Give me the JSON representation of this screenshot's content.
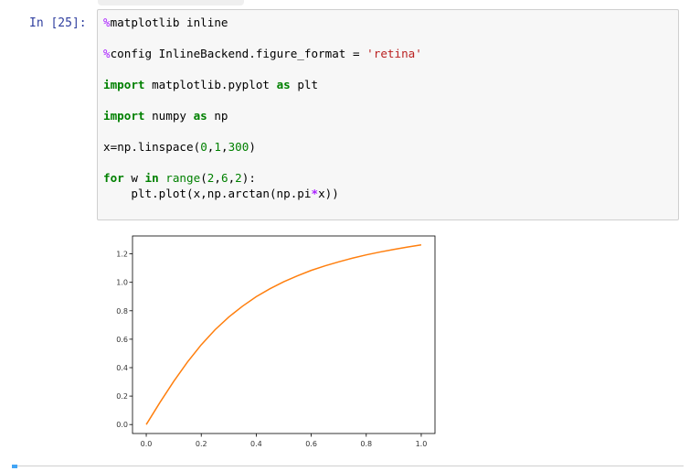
{
  "cell": {
    "prompt": "In [25]:",
    "code_lines": [
      {
        "parts": [
          {
            "t": "%",
            "c": "mg"
          },
          {
            "t": "matplotlib inline",
            "c": ""
          }
        ]
      },
      {
        "parts": []
      },
      {
        "parts": [
          {
            "t": "%",
            "c": "mg"
          },
          {
            "t": "config InlineBackend.figure_format ",
            "c": ""
          },
          {
            "t": "=",
            "c": ""
          },
          {
            "t": " ",
            "c": ""
          },
          {
            "t": "'retina'",
            "c": "str"
          }
        ]
      },
      {
        "parts": []
      },
      {
        "parts": [
          {
            "t": "import",
            "c": "kw"
          },
          {
            "t": " matplotlib.pyplot ",
            "c": ""
          },
          {
            "t": "as",
            "c": "kw"
          },
          {
            "t": " plt",
            "c": ""
          }
        ]
      },
      {
        "parts": []
      },
      {
        "parts": [
          {
            "t": "import",
            "c": "kw"
          },
          {
            "t": " numpy ",
            "c": ""
          },
          {
            "t": "as",
            "c": "kw"
          },
          {
            "t": " np",
            "c": ""
          }
        ]
      },
      {
        "parts": []
      },
      {
        "parts": [
          {
            "t": "x",
            "c": ""
          },
          {
            "t": "=",
            "c": ""
          },
          {
            "t": "np.linspace(",
            "c": ""
          },
          {
            "t": "0",
            "c": "num"
          },
          {
            "t": ",",
            "c": ""
          },
          {
            "t": "1",
            "c": "num"
          },
          {
            "t": ",",
            "c": ""
          },
          {
            "t": "300",
            "c": "num"
          },
          {
            "t": ")",
            "c": ""
          }
        ]
      },
      {
        "parts": []
      },
      {
        "parts": [
          {
            "t": "for",
            "c": "kw"
          },
          {
            "t": " w ",
            "c": ""
          },
          {
            "t": "in",
            "c": "kw"
          },
          {
            "t": " ",
            "c": ""
          },
          {
            "t": "range",
            "c": "bi"
          },
          {
            "t": "(",
            "c": ""
          },
          {
            "t": "2",
            "c": "num"
          },
          {
            "t": ",",
            "c": ""
          },
          {
            "t": "6",
            "c": "num"
          },
          {
            "t": ",",
            "c": ""
          },
          {
            "t": "2",
            "c": "num"
          },
          {
            "t": "):",
            "c": ""
          }
        ]
      },
      {
        "parts": [
          {
            "t": "    plt.plot(x,np.arctan(np.pi",
            "c": ""
          },
          {
            "t": "*",
            "c": "op"
          },
          {
            "t": "x))",
            "c": ""
          }
        ]
      }
    ]
  },
  "chart_data": {
    "type": "line",
    "x_function": "arctan(pi*x)",
    "x": [
      0,
      0.05,
      0.1,
      0.15,
      0.2,
      0.25,
      0.3,
      0.35,
      0.4,
      0.45,
      0.5,
      0.55,
      0.6,
      0.65,
      0.7,
      0.75,
      0.8,
      0.85,
      0.9,
      0.95,
      1.0
    ],
    "series": [
      {
        "color": "#ff7f0e",
        "values": [
          0.0,
          0.156,
          0.304,
          0.44,
          0.561,
          0.666,
          0.756,
          0.832,
          0.899,
          0.955,
          1.004,
          1.046,
          1.084,
          1.116,
          1.144,
          1.17,
          1.193,
          1.213,
          1.231,
          1.248,
          1.263
        ]
      }
    ],
    "xticks": [
      "0.0",
      "0.2",
      "0.4",
      "0.6",
      "0.8",
      "1.0"
    ],
    "yticks": [
      "0.0",
      "0.2",
      "0.4",
      "0.6",
      "0.8",
      "1.0",
      "1.2"
    ],
    "xlim": [
      -0.05,
      1.05
    ],
    "ylim": [
      -0.063,
      1.326
    ],
    "title": "",
    "xlabel": "",
    "ylabel": "",
    "grid": false
  }
}
